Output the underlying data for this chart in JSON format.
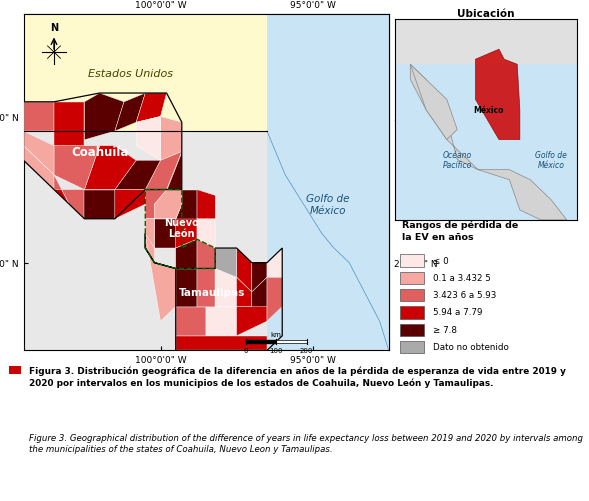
{
  "figure_caption_bold": "Figura 3. Distribución geográfica de la diferencia en años de la pérdida de esperanza de vida entre 2019 y 2020 por intervalos en los municipios de los estados de Coahuila, Nuevo León y Tamaulipas.",
  "figure_caption_normal": "Figure 3. Geographical distribution of the difference of years in life expectancy loss between 2019 and 2020 by intervals among the municipalities of the states of Coahuila, Nuevo Leon y Tamaulipas.",
  "legend_title": "Rangos de pérdida de\nla EV en años",
  "legend_items": [
    {
      "label": "≤ 0",
      "color": "#fde8e8"
    },
    {
      "label": "0.1 a 3.432 5",
      "color": "#f4a8a0"
    },
    {
      "label": "3.423 6 a 5.93",
      "color": "#e06060"
    },
    {
      "label": "5.94 a 7.79",
      "color": "#cc0000"
    },
    {
      "label": "≥ 7.8",
      "color": "#5a0000"
    },
    {
      "label": "Dato no obtenido",
      "color": "#aaaaaa"
    }
  ],
  "inset_title": "Ubicación",
  "labels": {
    "estados_unidos": "Estados Unidos",
    "coahuila": "Coahuila",
    "nuevo_leon": "Nuevo\nLeón",
    "tamaulipas": "Tamaulipas",
    "golfo_mexico": "Golfo de\nMéxico",
    "golfo_mexico_inset": "Golfo de\nMéxico",
    "oceano_pacifico": "Océano\nPacífico",
    "mexico_inset": "México"
  },
  "map_bg_color": "#c8e4f5",
  "us_bg_color": "#fffacd",
  "mexico_bg_color": "#e8e8e8",
  "state_border_color": "#006600",
  "c_vlight": "#fde8e8",
  "c_light": "#f4a8a0",
  "c_salmon": "#e06060",
  "c_red": "#cc0000",
  "c_dark": "#5a0000",
  "c_gray": "#aaaaaa"
}
